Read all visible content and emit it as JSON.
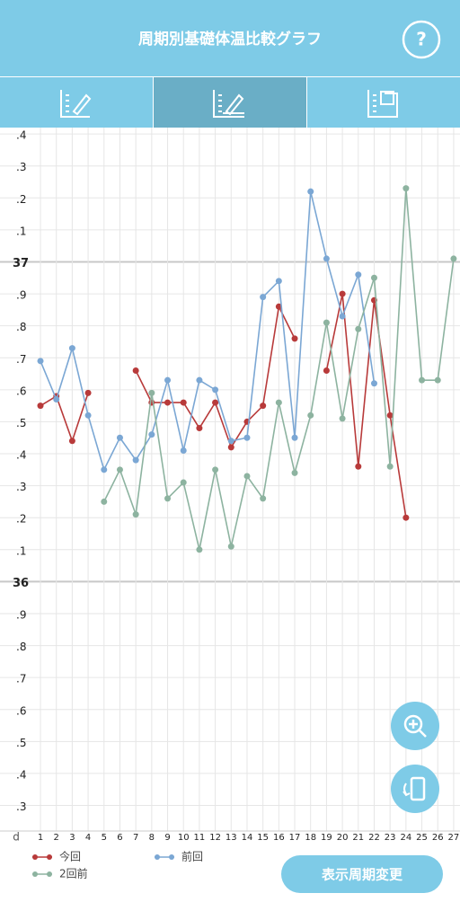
{
  "header": {
    "title": "周期別基礎体温比較グラフ",
    "help": "?"
  },
  "chart_data": {
    "type": "line",
    "x_label": "d",
    "x": [
      1,
      2,
      3,
      4,
      5,
      6,
      7,
      8,
      9,
      10,
      11,
      12,
      13,
      14,
      15,
      16,
      17,
      18,
      19,
      20,
      21,
      22,
      23,
      24,
      25,
      26,
      27
    ],
    "xlim": [
      0.49,
      27.4
    ],
    "xticks": [
      1,
      2,
      3,
      4,
      5,
      6,
      7,
      8,
      9,
      10,
      11,
      12,
      13,
      14,
      15,
      16,
      17,
      18,
      19,
      20,
      21,
      22,
      23,
      24,
      25,
      26,
      27
    ],
    "ylim": [
      35.22,
      37.42
    ],
    "yticks": [
      {
        "value": 35.3,
        "label": ".3"
      },
      {
        "value": 35.4,
        "label": ".4"
      },
      {
        "value": 35.5,
        "label": ".5"
      },
      {
        "value": 35.6,
        "label": ".6"
      },
      {
        "value": 35.7,
        "label": ".7"
      },
      {
        "value": 35.8,
        "label": ".8"
      },
      {
        "value": 35.9,
        "label": ".9"
      },
      36,
      {
        "value": 36.1,
        "label": ".1"
      },
      {
        "value": 36.2,
        "label": ".2"
      },
      {
        "value": 36.3,
        "label": ".3"
      },
      {
        "value": 36.4,
        "label": ".4"
      },
      {
        "value": 36.5,
        "label": ".5"
      },
      {
        "value": 36.6,
        "label": ".6"
      },
      {
        "value": 36.7,
        "label": ".7"
      },
      {
        "value": 36.8,
        "label": ".8"
      },
      {
        "value": 36.9,
        "label": ".9"
      },
      37,
      {
        "value": 37.1,
        "label": ".1"
      },
      {
        "value": 37.2,
        "label": ".2"
      },
      {
        "value": 37.3,
        "label": ".3"
      },
      {
        "value": 37.4,
        "label": ".4"
      }
    ],
    "grid": true,
    "series": [
      {
        "name": "今回",
        "color": "#b83a3a",
        "values": [
          36.55,
          36.58,
          36.44,
          36.59,
          null,
          null,
          36.66,
          36.56,
          36.56,
          36.56,
          36.48,
          36.56,
          36.42,
          36.5,
          36.55,
          36.86,
          36.76,
          null,
          36.66,
          36.9,
          36.36,
          36.88,
          36.52,
          36.2,
          null,
          null,
          null
        ]
      },
      {
        "name": "前回",
        "color": "#7ba7d4",
        "values": [
          36.69,
          36.57,
          36.73,
          36.52,
          36.35,
          36.45,
          36.38,
          36.46,
          36.63,
          36.41,
          36.63,
          36.6,
          36.44,
          36.45,
          36.89,
          36.94,
          36.45,
          37.22,
          37.01,
          36.83,
          36.96,
          36.62,
          null,
          null,
          null,
          null,
          null
        ]
      },
      {
        "name": "2回前",
        "color": "#8db3a0",
        "values": [
          null,
          null,
          null,
          null,
          36.25,
          36.35,
          36.21,
          36.59,
          36.26,
          36.31,
          36.1,
          36.35,
          36.11,
          36.33,
          36.26,
          36.56,
          36.34,
          36.52,
          36.81,
          36.51,
          36.79,
          36.95,
          36.36,
          37.23,
          36.63,
          36.63,
          37.01
        ]
      }
    ]
  },
  "button": "表示周期変更"
}
